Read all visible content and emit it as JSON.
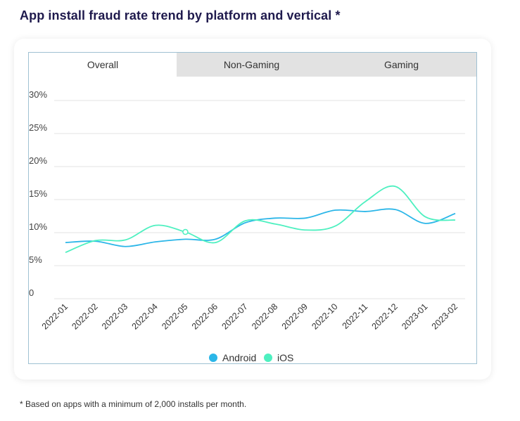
{
  "header": {
    "title": "App install fraud rate trend by platform and vertical *"
  },
  "tabs": [
    {
      "label": "Overall",
      "active": true
    },
    {
      "label": "Non-Gaming",
      "active": false
    },
    {
      "label": "Gaming",
      "active": false
    }
  ],
  "footnote": "* Based on apps with a minimum of 2,000 installs per month.",
  "colors": {
    "android": "#2bb6e8",
    "ios": "#4ef0c0",
    "grid": "#e3e3e3"
  },
  "chart_data": {
    "type": "line",
    "title": "App install fraud rate trend by platform and vertical *",
    "x": [
      "2022-01",
      "2022-02",
      "2022-03",
      "2022-04",
      "2022-05",
      "2022-06",
      "2022-07",
      "2022-08",
      "2022-09",
      "2022-10",
      "2022-11",
      "2022-12",
      "2023-01",
      "2023-02"
    ],
    "y_ticks": [
      "0",
      "5%",
      "10%",
      "15%",
      "20%",
      "25%",
      "30%"
    ],
    "ylim": [
      0,
      30
    ],
    "series": [
      {
        "name": "Android",
        "values": [
          8.5,
          8.7,
          7.9,
          8.6,
          9.0,
          9.0,
          11.5,
          12.2,
          12.2,
          13.4,
          13.2,
          13.5,
          11.4,
          12.9
        ]
      },
      {
        "name": "iOS",
        "values": [
          7.0,
          8.8,
          8.9,
          11.1,
          10.1,
          8.5,
          11.8,
          11.3,
          10.4,
          11.0,
          14.7,
          17.0,
          12.4,
          11.9
        ]
      }
    ],
    "marker": {
      "series": "iOS",
      "index": 4
    },
    "grid": true,
    "legend": "bottom-center"
  }
}
